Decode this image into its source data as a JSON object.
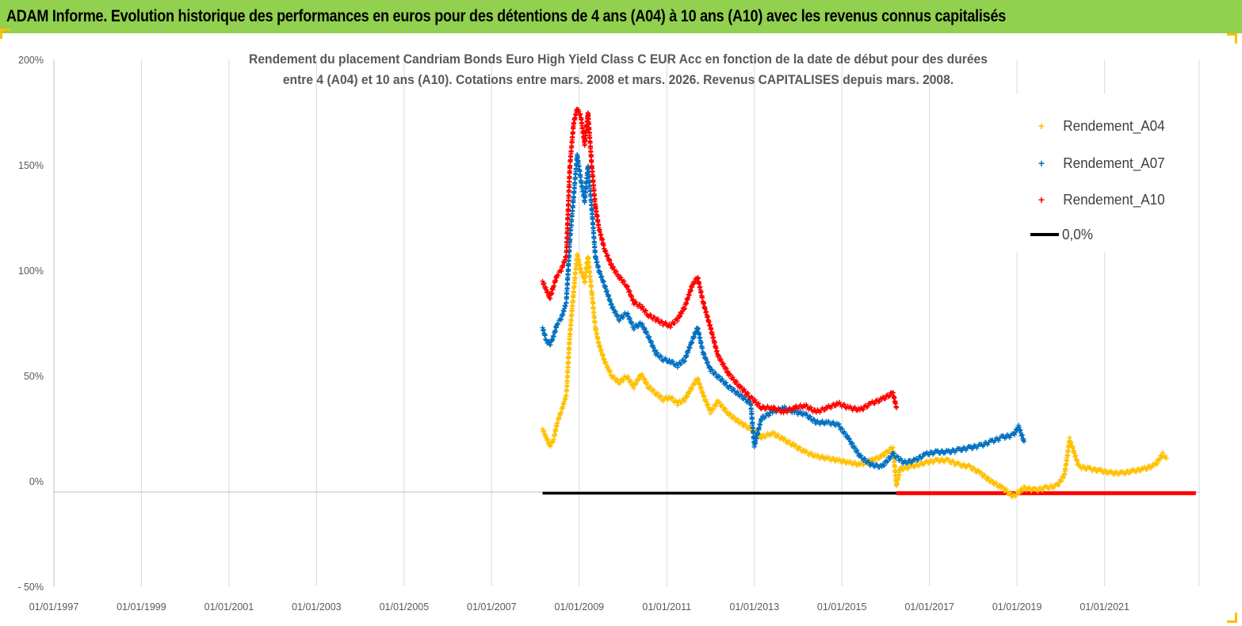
{
  "banner": {
    "title": "ADAM Informe. Evolution historique des performances en euros pour des détentions de 4 ans (A04) à 10 ans (A10) avec les revenus connus capitalisés"
  },
  "colors": {
    "banner": "#92d050",
    "A04": "#ffc000",
    "A07": "#0070c0",
    "A10": "#ff0000",
    "zero": "#000000"
  },
  "chart_data": {
    "type": "scatter",
    "title_lines": [
      "Rendement du placement Candriam Bonds Euro High Yield Class C EUR Acc en fonction de la date de début pour des durées",
      "entre 4 (A04) et 10 ans (A10). Cotations entre mars. 2008 et mars. 2026. Revenus CAPITALISES depuis mars. 2008."
    ],
    "x_axis": {
      "type": "date",
      "range": [
        "1997-01-01",
        "2023-03-01"
      ],
      "tick_labels": [
        "01/01/1997",
        "01/01/1999",
        "01/01/2001",
        "01/01/2003",
        "01/01/2005",
        "01/01/2007",
        "01/01/2009",
        "01/01/2011",
        "01/01/2013",
        "01/01/2015",
        "01/01/2017",
        "01/01/2019",
        "01/01/2021"
      ]
    },
    "y_axis": {
      "range": [
        -0.5,
        2.0
      ],
      "ticks": [
        -0.5,
        0,
        0.5,
        1.0,
        1.5,
        2.0
      ],
      "tick_labels": [
        "- 50%",
        "0%",
        "50%",
        "100%",
        "150%",
        "200%"
      ]
    },
    "grid": "vertical",
    "legend": {
      "position": "top-right",
      "entries": [
        "Rendement_A04",
        "Rendement_A07",
        "Rendement_A10",
        "0,0%"
      ]
    },
    "series": [
      {
        "name": "Rendement_A04",
        "marker": "+",
        "points": [
          [
            "2008-03-01",
            0.3
          ],
          [
            "2008-04-01",
            0.26
          ],
          [
            "2008-05-01",
            0.22
          ],
          [
            "2008-06-01",
            0.25
          ],
          [
            "2008-07-01",
            0.33
          ],
          [
            "2008-08-01",
            0.38
          ],
          [
            "2008-09-15",
            0.46
          ],
          [
            "2008-10-15",
            0.75
          ],
          [
            "2008-11-15",
            0.95
          ],
          [
            "2008-12-15",
            1.13
          ],
          [
            "2009-01-15",
            1.05
          ],
          [
            "2009-02-15",
            1.0
          ],
          [
            "2009-03-15",
            1.12
          ],
          [
            "2009-04-15",
            0.95
          ],
          [
            "2009-05-15",
            0.78
          ],
          [
            "2009-06-15",
            0.7
          ],
          [
            "2009-08-01",
            0.62
          ],
          [
            "2009-10-01",
            0.55
          ],
          [
            "2009-12-01",
            0.52
          ],
          [
            "2010-02-01",
            0.55
          ],
          [
            "2010-04-01",
            0.5
          ],
          [
            "2010-06-01",
            0.56
          ],
          [
            "2010-08-01",
            0.5
          ],
          [
            "2010-10-01",
            0.47
          ],
          [
            "2010-12-01",
            0.44
          ],
          [
            "2011-02-01",
            0.45
          ],
          [
            "2011-04-01",
            0.42
          ],
          [
            "2011-06-01",
            0.44
          ],
          [
            "2011-08-01",
            0.5
          ],
          [
            "2011-09-15",
            0.54
          ],
          [
            "2011-11-01",
            0.46
          ],
          [
            "2012-01-01",
            0.38
          ],
          [
            "2012-03-01",
            0.43
          ],
          [
            "2012-06-01",
            0.37
          ],
          [
            "2012-09-01",
            0.33
          ],
          [
            "2012-12-01",
            0.3
          ],
          [
            "2013-03-01",
            0.26
          ],
          [
            "2013-06-01",
            0.28
          ],
          [
            "2013-09-01",
            0.25
          ],
          [
            "2013-12-01",
            0.22
          ],
          [
            "2014-03-01",
            0.19
          ],
          [
            "2014-06-01",
            0.17
          ],
          [
            "2014-09-01",
            0.16
          ],
          [
            "2014-12-01",
            0.15
          ],
          [
            "2015-03-01",
            0.14
          ],
          [
            "2015-06-01",
            0.13
          ],
          [
            "2015-09-01",
            0.15
          ],
          [
            "2015-12-01",
            0.17
          ],
          [
            "2016-02-01",
            0.2
          ],
          [
            "2016-03-01",
            0.21
          ],
          [
            "2016-04-01",
            0.03
          ],
          [
            "2016-05-01",
            0.11
          ],
          [
            "2016-08-01",
            0.12
          ],
          [
            "2016-12-01",
            0.14
          ],
          [
            "2017-03-01",
            0.15
          ],
          [
            "2017-06-01",
            0.15
          ],
          [
            "2017-09-01",
            0.13
          ],
          [
            "2017-12-01",
            0.12
          ],
          [
            "2018-03-01",
            0.09
          ],
          [
            "2018-06-01",
            0.05
          ],
          [
            "2018-09-01",
            0.02
          ],
          [
            "2018-12-01",
            -0.02
          ],
          [
            "2019-03-01",
            0.02
          ],
          [
            "2019-06-01",
            0.01
          ],
          [
            "2019-09-01",
            0.02
          ],
          [
            "2019-12-01",
            0.03
          ],
          [
            "2020-02-01",
            0.08
          ],
          [
            "2020-03-15",
            0.25
          ],
          [
            "2020-06-01",
            0.12
          ],
          [
            "2020-09-01",
            0.11
          ],
          [
            "2020-12-01",
            0.1
          ],
          [
            "2021-03-01",
            0.09
          ],
          [
            "2021-06-01",
            0.09
          ],
          [
            "2021-09-01",
            0.1
          ],
          [
            "2021-12-01",
            0.11
          ],
          [
            "2022-03-01",
            0.13
          ],
          [
            "2022-05-01",
            0.18
          ],
          [
            "2022-06-01",
            0.16
          ]
        ]
      },
      {
        "name": "Rendement_A07",
        "marker": "+",
        "points": [
          [
            "2008-03-01",
            0.78
          ],
          [
            "2008-04-01",
            0.72
          ],
          [
            "2008-05-01",
            0.7
          ],
          [
            "2008-06-01",
            0.74
          ],
          [
            "2008-07-01",
            0.8
          ],
          [
            "2008-08-01",
            0.82
          ],
          [
            "2008-09-15",
            0.9
          ],
          [
            "2008-10-15",
            1.2
          ],
          [
            "2008-11-15",
            1.4
          ],
          [
            "2008-12-15",
            1.6
          ],
          [
            "2009-01-15",
            1.48
          ],
          [
            "2009-02-15",
            1.38
          ],
          [
            "2009-03-15",
            1.55
          ],
          [
            "2009-04-15",
            1.35
          ],
          [
            "2009-05-15",
            1.12
          ],
          [
            "2009-06-15",
            1.05
          ],
          [
            "2009-08-01",
            0.98
          ],
          [
            "2009-10-01",
            0.88
          ],
          [
            "2009-12-01",
            0.82
          ],
          [
            "2010-02-01",
            0.85
          ],
          [
            "2010-04-01",
            0.78
          ],
          [
            "2010-06-01",
            0.8
          ],
          [
            "2010-08-01",
            0.74
          ],
          [
            "2010-10-01",
            0.66
          ],
          [
            "2010-12-01",
            0.63
          ],
          [
            "2011-02-01",
            0.62
          ],
          [
            "2011-04-01",
            0.6
          ],
          [
            "2011-06-01",
            0.63
          ],
          [
            "2011-08-01",
            0.72
          ],
          [
            "2011-09-15",
            0.78
          ],
          [
            "2011-11-01",
            0.66
          ],
          [
            "2012-01-01",
            0.58
          ],
          [
            "2012-03-01",
            0.55
          ],
          [
            "2012-06-01",
            0.5
          ],
          [
            "2012-09-01",
            0.46
          ],
          [
            "2012-12-01",
            0.42
          ],
          [
            "2013-01-01",
            0.22
          ],
          [
            "2013-03-01",
            0.35
          ],
          [
            "2013-06-01",
            0.38
          ],
          [
            "2013-09-01",
            0.4
          ],
          [
            "2013-12-01",
            0.38
          ],
          [
            "2014-03-01",
            0.37
          ],
          [
            "2014-06-01",
            0.33
          ],
          [
            "2014-09-01",
            0.33
          ],
          [
            "2014-12-01",
            0.32
          ],
          [
            "2015-03-01",
            0.25
          ],
          [
            "2015-06-01",
            0.17
          ],
          [
            "2015-09-01",
            0.13
          ],
          [
            "2015-12-01",
            0.12
          ],
          [
            "2016-03-01",
            0.18
          ],
          [
            "2016-06-01",
            0.14
          ],
          [
            "2016-09-01",
            0.15
          ],
          [
            "2016-12-01",
            0.18
          ],
          [
            "2017-03-01",
            0.19
          ],
          [
            "2017-06-01",
            0.19
          ],
          [
            "2017-09-01",
            0.2
          ],
          [
            "2017-12-01",
            0.21
          ],
          [
            "2018-03-01",
            0.22
          ],
          [
            "2018-06-01",
            0.24
          ],
          [
            "2018-09-01",
            0.26
          ],
          [
            "2018-12-01",
            0.27
          ],
          [
            "2019-01-15",
            0.31
          ],
          [
            "2019-03-01",
            0.24
          ]
        ]
      },
      {
        "name": "Rendement_A10",
        "marker": "+",
        "points": [
          [
            "2008-03-01",
            1.0
          ],
          [
            "2008-04-01",
            0.96
          ],
          [
            "2008-05-01",
            0.92
          ],
          [
            "2008-06-01",
            0.98
          ],
          [
            "2008-07-01",
            1.03
          ],
          [
            "2008-08-01",
            1.05
          ],
          [
            "2008-09-15",
            1.12
          ],
          [
            "2008-10-15",
            1.55
          ],
          [
            "2008-11-15",
            1.75
          ],
          [
            "2008-12-15",
            1.82
          ],
          [
            "2009-01-15",
            1.78
          ],
          [
            "2009-02-15",
            1.65
          ],
          [
            "2009-03-15",
            1.8
          ],
          [
            "2009-04-15",
            1.55
          ],
          [
            "2009-05-15",
            1.36
          ],
          [
            "2009-06-15",
            1.25
          ],
          [
            "2009-08-01",
            1.15
          ],
          [
            "2009-10-01",
            1.07
          ],
          [
            "2009-12-01",
            1.02
          ],
          [
            "2010-02-01",
            0.98
          ],
          [
            "2010-04-01",
            0.9
          ],
          [
            "2010-06-01",
            0.88
          ],
          [
            "2010-08-01",
            0.84
          ],
          [
            "2010-10-01",
            0.82
          ],
          [
            "2010-12-01",
            0.8
          ],
          [
            "2011-02-01",
            0.79
          ],
          [
            "2011-04-01",
            0.82
          ],
          [
            "2011-06-01",
            0.88
          ],
          [
            "2011-08-01",
            0.98
          ],
          [
            "2011-09-15",
            1.02
          ],
          [
            "2011-11-01",
            0.9
          ],
          [
            "2012-01-01",
            0.78
          ],
          [
            "2012-03-01",
            0.65
          ],
          [
            "2012-06-01",
            0.56
          ],
          [
            "2012-09-01",
            0.5
          ],
          [
            "2012-12-01",
            0.45
          ],
          [
            "2013-03-01",
            0.4
          ],
          [
            "2013-06-01",
            0.4
          ],
          [
            "2013-09-01",
            0.38
          ],
          [
            "2013-12-01",
            0.4
          ],
          [
            "2014-03-01",
            0.41
          ],
          [
            "2014-06-01",
            0.38
          ],
          [
            "2014-09-01",
            0.4
          ],
          [
            "2014-12-01",
            0.42
          ],
          [
            "2015-03-01",
            0.4
          ],
          [
            "2015-06-01",
            0.39
          ],
          [
            "2015-09-01",
            0.42
          ],
          [
            "2015-12-01",
            0.44
          ],
          [
            "2016-03-01",
            0.47
          ],
          [
            "2016-04-01",
            0.4
          ]
        ]
      },
      {
        "name": "Rendement_A10",
        "role": "end-of-range",
        "marker": "+",
        "segment": {
          "from": "2016-04-01",
          "to": "2023-02-01",
          "value": -0.005
        }
      },
      {
        "name": "0,0%",
        "marker": "line",
        "segment": {
          "from": "2008-03-01",
          "to": "2016-04-01",
          "value": -0.005
        }
      }
    ]
  }
}
